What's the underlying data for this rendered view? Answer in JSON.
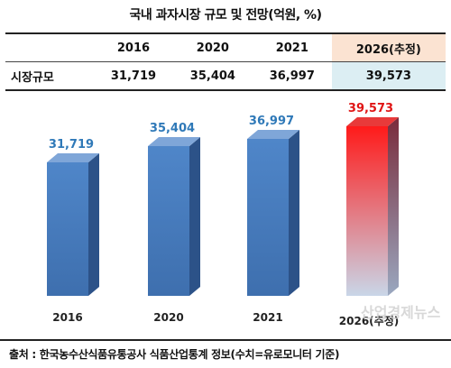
{
  "header": {
    "title": "국내 과자시장 규모 및 전망(억원, %)"
  },
  "summary_table": {
    "row_label": "시장규모",
    "columns": [
      "2016",
      "2020",
      "2021",
      "2026(추정)"
    ],
    "values": [
      "31,719",
      "35,404",
      "36,997",
      "39,573"
    ],
    "highlight_color_head": "#fbe3d2",
    "highlight_color_value": "#dceef3"
  },
  "chart_data": {
    "type": "bar",
    "categories": [
      "2016",
      "2020",
      "2021",
      "2026(추정)"
    ],
    "values": [
      31719,
      35404,
      36997,
      39573
    ],
    "value_labels": [
      "31,719",
      "35,404",
      "36,997",
      "39,573"
    ],
    "title": "",
    "xlabel": "",
    "ylabel": "",
    "colors": {
      "actual_front_top": "#4f86c9",
      "actual_front_bottom": "#3e6fae",
      "actual_side": "#2c5288",
      "actual_top": "#7fa6d8",
      "forecast_front_top": "#ff1a1a",
      "forecast_front_bottom": "#c9d6e8",
      "forecast_side": "#7a2b3b",
      "forecast_top": "#e83a3a",
      "actual_label": "#2f79b8",
      "forecast_label": "#e01515"
    }
  },
  "source": {
    "text": "출처 : 한국농수산식품유통공사 식품산업통계 정보(수치=유로모니터 기준)"
  },
  "watermark": {
    "text": "산업경제뉴스"
  }
}
